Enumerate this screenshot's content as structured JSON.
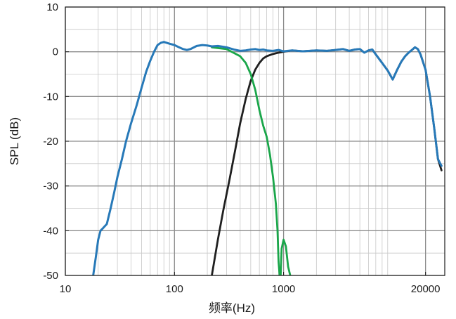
{
  "chart_data": {
    "type": "line",
    "xlabel": "频率(Hz)",
    "ylabel": "SPL (dB)",
    "xscale": "log",
    "xlim": [
      10,
      30000
    ],
    "ylim": [
      -50,
      10
    ],
    "grid": true,
    "x_ticks": [
      {
        "value": 10,
        "label": "10"
      },
      {
        "value": 100,
        "label": "100"
      },
      {
        "value": 1000,
        "label": "1000"
      },
      {
        "value": 20000,
        "label": "20000"
      }
    ],
    "y_ticks": [
      {
        "value": 10,
        "label": "10"
      },
      {
        "value": 0,
        "label": "0"
      },
      {
        "value": -10,
        "label": "-10"
      },
      {
        "value": -20,
        "label": "-20"
      },
      {
        "value": -30,
        "label": "-30"
      },
      {
        "value": -40,
        "label": "-40"
      },
      {
        "value": -50,
        "label": "-50"
      }
    ],
    "series": [
      {
        "color": "#1f1f1f",
        "x": [
          220,
          250,
          280,
          320,
          360,
          400,
          450,
          500,
          550,
          600,
          650,
          700,
          800,
          900,
          1000,
          1200,
          1500,
          2000,
          2500,
          3000,
          3500,
          4000,
          4500,
          5000,
          5500,
          6000,
          6500,
          7000,
          8000,
          9000,
          10000,
          11000,
          12000,
          13000,
          14000,
          15000,
          16000,
          17000,
          18000,
          20000,
          22000,
          24000,
          26000,
          28000
        ],
        "y": [
          -50,
          -42,
          -35.5,
          -28.5,
          -22,
          -16,
          -10.5,
          -6.5,
          -4,
          -2.5,
          -1.5,
          -1,
          -0.5,
          -0.2,
          0,
          0.3,
          0.1,
          0.3,
          0.2,
          0.4,
          0.6,
          0.2,
          0.5,
          0.6,
          -0.2,
          0.3,
          0.5,
          -0.6,
          -2.5,
          -4.2,
          -6.2,
          -4,
          -2.2,
          -1,
          -0.2,
          0.4,
          1,
          0.6,
          -0.6,
          -4,
          -10,
          -17,
          -24,
          -26.5
        ]
      },
      {
        "color": "#1aa64a",
        "x": [
          220,
          300,
          400,
          450,
          500,
          550,
          600,
          650,
          700,
          750,
          800,
          850,
          880,
          900,
          920,
          940,
          960,
          1000,
          1050,
          1100,
          1150
        ],
        "y": [
          1,
          0.6,
          -1,
          -2.5,
          -5,
          -8.5,
          -13,
          -16.5,
          -19,
          -23,
          -28,
          -34,
          -40,
          -47,
          -50,
          -50,
          -44,
          -42,
          -43.5,
          -48,
          -50
        ]
      },
      {
        "color": "#2779b8",
        "x": [
          18,
          19,
          20,
          21,
          22,
          24,
          26,
          28,
          30,
          33,
          36,
          40,
          45,
          50,
          55,
          60,
          65,
          70,
          75,
          80,
          90,
          100,
          110,
          120,
          130,
          140,
          160,
          180,
          200,
          220,
          250,
          300,
          350,
          400,
          450,
          500,
          550,
          600,
          650,
          700,
          800,
          900,
          1000,
          1200,
          1500,
          2000,
          2500,
          3000,
          3500,
          4000,
          4500,
          5000,
          5500,
          6000,
          6500,
          7000,
          8000,
          9000,
          10000,
          11000,
          12000,
          13000,
          14000,
          15000,
          16000,
          17000,
          18000,
          20000,
          22000,
          24000,
          26000,
          28000
        ],
        "y": [
          -50,
          -46,
          -42,
          -40,
          -39.5,
          -38.5,
          -35,
          -31.5,
          -28,
          -24,
          -20,
          -16,
          -12,
          -8,
          -4.5,
          -2,
          0,
          1.5,
          2,
          2.2,
          1.8,
          1.5,
          1,
          0.6,
          0.4,
          0.6,
          1.3,
          1.5,
          1.4,
          1.2,
          1.3,
          1,
          0.5,
          0.2,
          0.3,
          0.5,
          0.6,
          0.4,
          0.5,
          0.3,
          0.2,
          0.4,
          0.1,
          0.3,
          0.1,
          0.3,
          0.2,
          0.4,
          0.6,
          0.2,
          0.5,
          0.6,
          -0.2,
          0.3,
          0.5,
          -0.6,
          -2.5,
          -4.2,
          -6.2,
          -4,
          -2.2,
          -1,
          -0.2,
          0.4,
          1,
          0.6,
          -0.6,
          -4,
          -10,
          -17,
          -24,
          -25.5
        ]
      }
    ]
  }
}
